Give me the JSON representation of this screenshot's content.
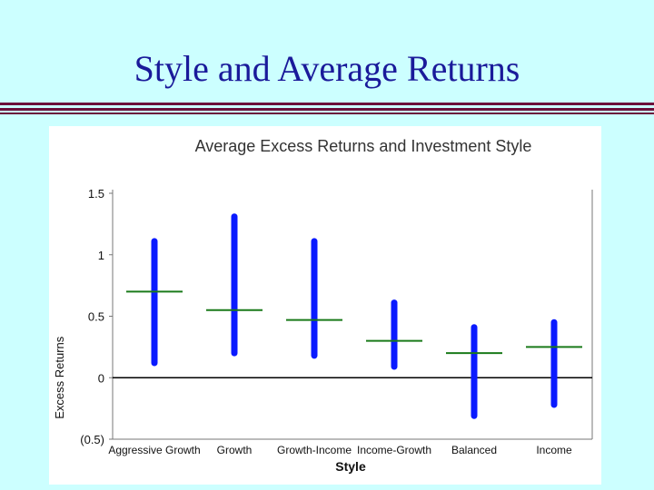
{
  "slide": {
    "title": "Style and Average Returns"
  },
  "chart_data": {
    "type": "range-bar",
    "title": "Average Excess Returns and Investment Style",
    "xlabel": "Style",
    "ylabel": "Excess Returns",
    "categories": [
      "Aggressive Growth",
      "Growth",
      "Growth-Income",
      "Income-Growth",
      "Balanced",
      "Income"
    ],
    "ranges": [
      {
        "low": 0.12,
        "high": 1.11,
        "mean": 0.7
      },
      {
        "low": 0.2,
        "high": 1.31,
        "mean": 0.55
      },
      {
        "low": 0.18,
        "high": 1.11,
        "mean": 0.47
      },
      {
        "low": 0.09,
        "high": 0.61,
        "mean": 0.3
      },
      {
        "low": -0.31,
        "high": 0.41,
        "mean": 0.2
      },
      {
        "low": -0.22,
        "high": 0.45,
        "mean": 0.25
      }
    ],
    "y_ticks": [
      1.5,
      1,
      0.5,
      0,
      -0.5
    ],
    "y_tick_labels": [
      "1.5",
      "1",
      "0.5",
      "0",
      "(0.5)"
    ],
    "ylim": [
      -0.5,
      1.5
    ],
    "grid": false,
    "colors": {
      "range": "#0a1aff",
      "mean": "#1a7a1a",
      "zero_line": "#000000"
    }
  }
}
